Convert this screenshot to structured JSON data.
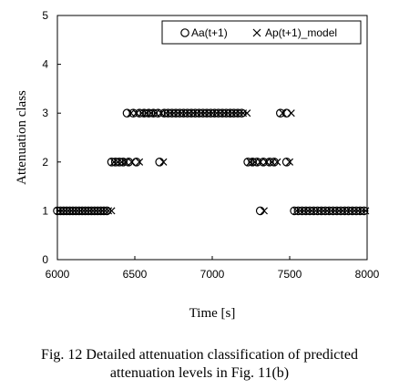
{
  "chart_data": {
    "type": "scatter",
    "xlabel": "Time [s]",
    "ylabel": "Attenuation class",
    "xlim": [
      6000,
      8000
    ],
    "ylim": [
      0,
      5
    ],
    "xticks": [
      6000,
      6500,
      7000,
      7500,
      8000
    ],
    "yticks": [
      0,
      1,
      2,
      3,
      4,
      5
    ],
    "grid": false,
    "legend_position": "top-right",
    "series": [
      {
        "name": "Aa(t+1)",
        "marker": "circle",
        "color": "#000000",
        "points": [
          [
            6000,
            1
          ],
          [
            6020,
            1
          ],
          [
            6040,
            1
          ],
          [
            6060,
            1
          ],
          [
            6080,
            1
          ],
          [
            6100,
            1
          ],
          [
            6120,
            1
          ],
          [
            6140,
            1
          ],
          [
            6160,
            1
          ],
          [
            6180,
            1
          ],
          [
            6200,
            1
          ],
          [
            6220,
            1
          ],
          [
            6240,
            1
          ],
          [
            6260,
            1
          ],
          [
            6280,
            1
          ],
          [
            6300,
            1
          ],
          [
            6320,
            1
          ],
          [
            6350,
            2
          ],
          [
            6375,
            2
          ],
          [
            6400,
            2
          ],
          [
            6425,
            2
          ],
          [
            6460,
            2
          ],
          [
            6510,
            2
          ],
          [
            6660,
            2
          ],
          [
            6450,
            3
          ],
          [
            6490,
            3
          ],
          [
            6530,
            3
          ],
          [
            6560,
            3
          ],
          [
            6590,
            3
          ],
          [
            6620,
            3
          ],
          [
            6650,
            3
          ],
          [
            6690,
            3
          ],
          [
            6715,
            3
          ],
          [
            6740,
            3
          ],
          [
            6765,
            3
          ],
          [
            6790,
            3
          ],
          [
            6815,
            3
          ],
          [
            6840,
            3
          ],
          [
            6865,
            3
          ],
          [
            6890,
            3
          ],
          [
            6915,
            3
          ],
          [
            6940,
            3
          ],
          [
            6965,
            3
          ],
          [
            6990,
            3
          ],
          [
            7015,
            3
          ],
          [
            7040,
            3
          ],
          [
            7065,
            3
          ],
          [
            7090,
            3
          ],
          [
            7115,
            3
          ],
          [
            7140,
            3
          ],
          [
            7165,
            3
          ],
          [
            7190,
            3
          ],
          [
            7230,
            2
          ],
          [
            7260,
            2
          ],
          [
            7290,
            2
          ],
          [
            7330,
            2
          ],
          [
            7370,
            2
          ],
          [
            7400,
            2
          ],
          [
            7480,
            2
          ],
          [
            7440,
            3
          ],
          [
            7480,
            3
          ],
          [
            7310,
            1
          ],
          [
            7530,
            1
          ],
          [
            7555,
            1
          ],
          [
            7580,
            1
          ],
          [
            7605,
            1
          ],
          [
            7630,
            1
          ],
          [
            7655,
            1
          ],
          [
            7680,
            1
          ],
          [
            7705,
            1
          ],
          [
            7730,
            1
          ],
          [
            7755,
            1
          ],
          [
            7780,
            1
          ],
          [
            7805,
            1
          ],
          [
            7830,
            1
          ],
          [
            7855,
            1
          ],
          [
            7880,
            1
          ],
          [
            7905,
            1
          ],
          [
            7930,
            1
          ],
          [
            7955,
            1
          ],
          [
            7980,
            1
          ]
        ]
      },
      {
        "name": "Ap(t+1)_model",
        "marker": "x",
        "color": "#000000",
        "points": [
          [
            6010,
            1
          ],
          [
            6030,
            1
          ],
          [
            6050,
            1
          ],
          [
            6070,
            1
          ],
          [
            6090,
            1
          ],
          [
            6110,
            1
          ],
          [
            6130,
            1
          ],
          [
            6150,
            1
          ],
          [
            6170,
            1
          ],
          [
            6190,
            1
          ],
          [
            6210,
            1
          ],
          [
            6230,
            1
          ],
          [
            6250,
            1
          ],
          [
            6270,
            1
          ],
          [
            6290,
            1
          ],
          [
            6310,
            1
          ],
          [
            6330,
            1
          ],
          [
            6350,
            1
          ],
          [
            6365,
            2
          ],
          [
            6390,
            2
          ],
          [
            6415,
            2
          ],
          [
            6440,
            2
          ],
          [
            6480,
            2
          ],
          [
            6530,
            2
          ],
          [
            6685,
            2
          ],
          [
            6475,
            3
          ],
          [
            6510,
            3
          ],
          [
            6545,
            3
          ],
          [
            6575,
            3
          ],
          [
            6605,
            3
          ],
          [
            6635,
            3
          ],
          [
            6670,
            3
          ],
          [
            6702,
            3
          ],
          [
            6728,
            3
          ],
          [
            6752,
            3
          ],
          [
            6778,
            3
          ],
          [
            6802,
            3
          ],
          [
            6828,
            3
          ],
          [
            6852,
            3
          ],
          [
            6878,
            3
          ],
          [
            6902,
            3
          ],
          [
            6928,
            3
          ],
          [
            6952,
            3
          ],
          [
            6978,
            3
          ],
          [
            7002,
            3
          ],
          [
            7028,
            3
          ],
          [
            7052,
            3
          ],
          [
            7078,
            3
          ],
          [
            7102,
            3
          ],
          [
            7128,
            3
          ],
          [
            7152,
            3
          ],
          [
            7178,
            3
          ],
          [
            7200,
            3
          ],
          [
            7225,
            3
          ],
          [
            7245,
            2
          ],
          [
            7275,
            2
          ],
          [
            7310,
            2
          ],
          [
            7350,
            2
          ],
          [
            7385,
            2
          ],
          [
            7420,
            2
          ],
          [
            7500,
            2
          ],
          [
            7455,
            3
          ],
          [
            7510,
            3
          ],
          [
            7335,
            1
          ],
          [
            7545,
            1
          ],
          [
            7568,
            1
          ],
          [
            7592,
            1
          ],
          [
            7618,
            1
          ],
          [
            7642,
            1
          ],
          [
            7668,
            1
          ],
          [
            7692,
            1
          ],
          [
            7718,
            1
          ],
          [
            7742,
            1
          ],
          [
            7768,
            1
          ],
          [
            7792,
            1
          ],
          [
            7818,
            1
          ],
          [
            7842,
            1
          ],
          [
            7868,
            1
          ],
          [
            7892,
            1
          ],
          [
            7918,
            1
          ],
          [
            7942,
            1
          ],
          [
            7968,
            1
          ],
          [
            7990,
            1
          ]
        ]
      }
    ]
  },
  "caption": {
    "line1": "Fig. 12  Detailed attenuation classification of predicted",
    "line2": "attenuation levels in Fig. 11(b)"
  }
}
